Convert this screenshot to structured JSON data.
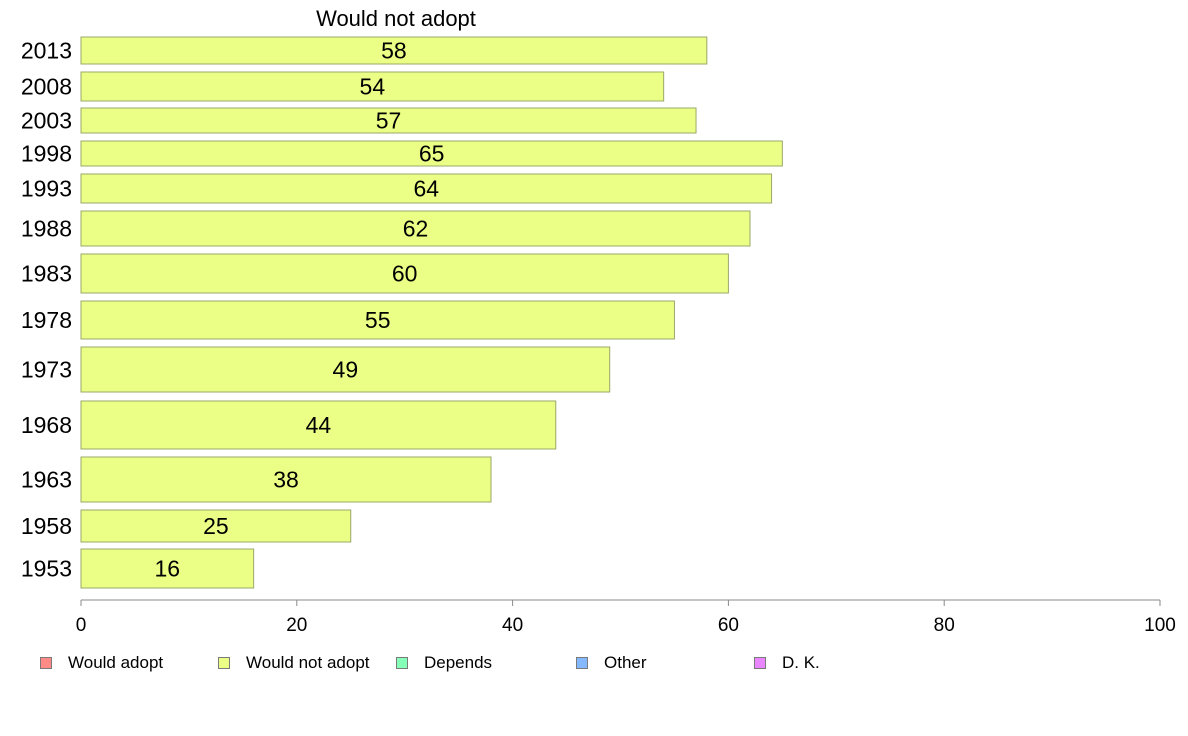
{
  "chart_data": {
    "type": "bar",
    "orientation": "horizontal",
    "title": "Would not adopt",
    "categories": [
      "2013",
      "2008",
      "2003",
      "1998",
      "1993",
      "1988",
      "1983",
      "1978",
      "1973",
      "1968",
      "1963",
      "1958",
      "1953"
    ],
    "series": [
      {
        "name": "Would not adopt",
        "values": [
          58,
          54,
          57,
          65,
          64,
          62,
          60,
          55,
          49,
          44,
          38,
          25,
          16
        ]
      }
    ],
    "data_labels": [
      "58",
      "54",
      "57",
      "65",
      "64",
      "62",
      "60",
      "55",
      "49",
      "44",
      "38",
      "25",
      "16"
    ],
    "xlim": [
      0,
      100
    ],
    "xticks": [
      "0",
      "20",
      "40",
      "60",
      "80",
      "100"
    ],
    "xlabel": "",
    "ylabel": "",
    "grid": false,
    "legend_position": "bottom",
    "bar_color": "#ebff86",
    "bar_border_color": "#9aa86a"
  },
  "legend": {
    "items": [
      {
        "label": "Would adopt",
        "color": "#ff8a86"
      },
      {
        "label": "Would not adopt",
        "color": "#ebff86"
      },
      {
        "label": "Depends",
        "color": "#86ffb8"
      },
      {
        "label": "Other",
        "color": "#86b8ff"
      },
      {
        "label": "D. K.",
        "color": "#ea86ff"
      }
    ]
  }
}
